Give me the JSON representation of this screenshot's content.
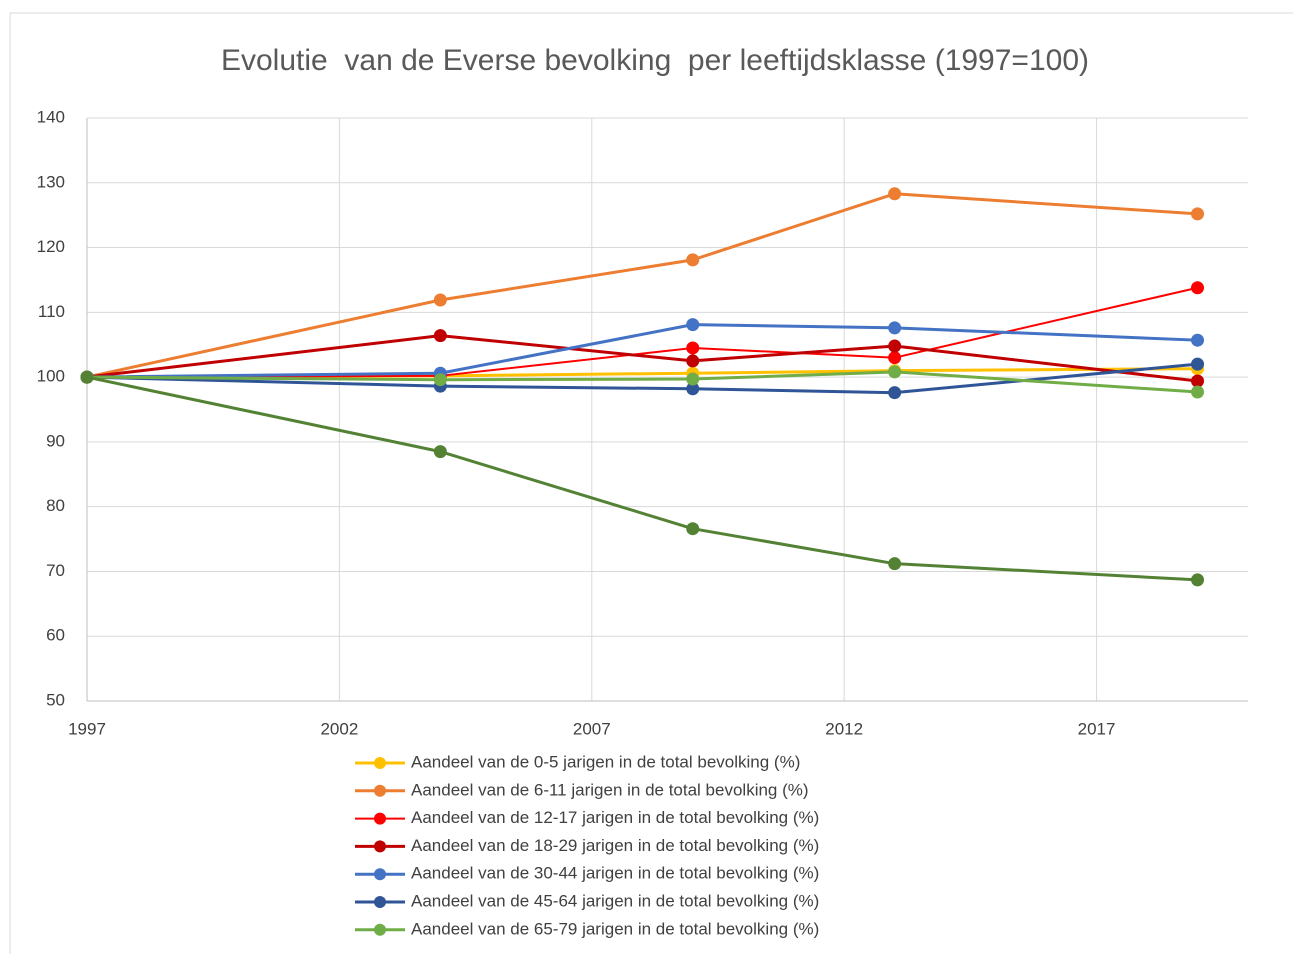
{
  "chart_data": {
    "type": "line",
    "title": "Evolutie  van de Everse bevolking  per leeftijdsklasse (1997=100)",
    "x": [
      1997,
      2004,
      2009,
      2013,
      2019
    ],
    "xlim": [
      1997,
      2020
    ],
    "xticks": [
      1997,
      2002,
      2007,
      2012,
      2017
    ],
    "ylim": [
      50,
      140
    ],
    "yticks": [
      50,
      60,
      70,
      80,
      90,
      100,
      110,
      120,
      130,
      140
    ],
    "grid": true,
    "legend": "bottom",
    "series": [
      {
        "name": "Aandeel van de 0-5 jarigen in de total bevolking (%)",
        "color": "#ffc000",
        "values": [
          100,
          100.2,
          100.6,
          101.0,
          101.3
        ]
      },
      {
        "name": "Aandeel van de 6-11 jarigen in de total bevolking (%)",
        "color": "#ed7d31",
        "values": [
          100,
          111.9,
          118.1,
          128.3,
          125.2
        ]
      },
      {
        "name": "Aandeel van de 12-17 jarigen in de total bevolking (%)",
        "color": "#ff0000",
        "values": [
          100,
          100.2,
          104.5,
          103.0,
          113.8
        ]
      },
      {
        "name": "Aandeel van de 18-29 jarigen in de total bevolking (%)",
        "color": "#c00000",
        "values": [
          100,
          106.4,
          102.5,
          104.8,
          99.4
        ]
      },
      {
        "name": "Aandeel van de 30-44 jarigen in de total bevolking (%)",
        "color": "#4472c4",
        "values": [
          100,
          100.6,
          108.1,
          107.6,
          105.7
        ]
      },
      {
        "name": "Aandeel van de 45-64 jarigen in de total bevolking (%)",
        "color": "#2f5597",
        "values": [
          100,
          98.6,
          98.2,
          97.6,
          102.0
        ]
      },
      {
        "name": "Aandeel van de 65-79 jarigen in de total bevolking (%)",
        "color": "#70ad47",
        "values": [
          100,
          99.6,
          99.7,
          100.8,
          97.7
        ]
      },
      {
        "color": "#548235",
        "values": [
          100,
          88.5,
          76.6,
          71.2,
          68.7
        ]
      }
    ]
  }
}
